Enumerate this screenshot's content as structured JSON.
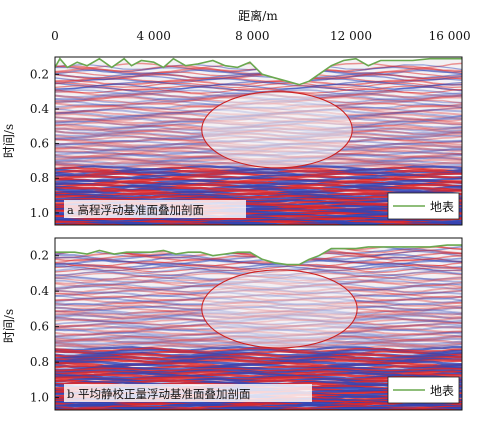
{
  "chart_data": [
    {
      "type": "seismic-section",
      "panel_label": "a 高程浮动基准面叠加剖面",
      "xlabel": "距离/m",
      "ylabel": "时间/s",
      "xlim": [
        0,
        16500
      ],
      "ylim": [
        0.1,
        1.07
      ],
      "x_ticks": [
        0,
        4000,
        8000,
        12000,
        16000
      ],
      "x_tick_labels": [
        "0",
        "4 000",
        "8 000",
        "12 000",
        "16 000"
      ],
      "y_ticks": [
        0.2,
        0.4,
        0.6,
        0.8,
        1.0
      ],
      "y_tick_labels": [
        "0.2",
        "0.4",
        "0.6",
        "0.8",
        "1.0"
      ],
      "legend": {
        "label": "地表",
        "color": "#6aa84f",
        "position": "bottom-right"
      },
      "surface_line": {
        "name": "地表",
        "x": [
          0,
          200,
          500,
          900,
          1300,
          1800,
          2300,
          2800,
          3100,
          3500,
          4000,
          4400,
          4800,
          5300,
          5800,
          6400,
          6900,
          7400,
          7900,
          8400,
          8900,
          9400,
          9900,
          10300,
          10700,
          11200,
          11700,
          12200,
          12700,
          13200,
          13800,
          14500,
          15200,
          15900,
          16500
        ],
        "y": [
          0.16,
          0.11,
          0.16,
          0.13,
          0.15,
          0.11,
          0.16,
          0.11,
          0.15,
          0.12,
          0.13,
          0.16,
          0.11,
          0.15,
          0.14,
          0.12,
          0.15,
          0.16,
          0.13,
          0.2,
          0.22,
          0.24,
          0.26,
          0.24,
          0.2,
          0.15,
          0.12,
          0.11,
          0.15,
          0.12,
          0.12,
          0.12,
          0.11,
          0.11,
          0.11
        ]
      },
      "annotation_ellipse": {
        "cx": 9000,
        "cy": 0.52,
        "rx": 3050,
        "ry": 0.22,
        "color": "#cc2222"
      }
    },
    {
      "type": "seismic-section",
      "panel_label": "b 平均静校正量浮动基准面叠加剖面",
      "xlabel": "",
      "ylabel": "时间/s",
      "xlim": [
        0,
        16500
      ],
      "ylim": [
        0.1,
        1.07
      ],
      "y_ticks": [
        0.2,
        0.4,
        0.6,
        0.8,
        1.0
      ],
      "y_tick_labels": [
        "0.2",
        "0.4",
        "0.6",
        "0.8",
        "1.0"
      ],
      "legend": {
        "label": "地表",
        "color": "#6aa84f",
        "position": "bottom-right"
      },
      "surface_line": {
        "name": "地表",
        "x": [
          0,
          400,
          800,
          1300,
          1800,
          2400,
          2900,
          3400,
          3900,
          4400,
          4900,
          5400,
          5900,
          6400,
          6900,
          7400,
          7900,
          8400,
          8900,
          9400,
          9900,
          10300,
          10700,
          11200,
          11700,
          12200,
          12700,
          13200,
          13800,
          14500,
          15200,
          15900,
          16500
        ],
        "y": [
          0.18,
          0.18,
          0.18,
          0.19,
          0.17,
          0.19,
          0.18,
          0.18,
          0.18,
          0.17,
          0.19,
          0.18,
          0.18,
          0.2,
          0.19,
          0.18,
          0.18,
          0.22,
          0.24,
          0.25,
          0.25,
          0.22,
          0.2,
          0.16,
          0.16,
          0.16,
          0.15,
          0.15,
          0.15,
          0.15,
          0.15,
          0.14,
          0.14
        ]
      },
      "annotation_ellipse": {
        "cx": 9100,
        "cy": 0.5,
        "rx": 3150,
        "ry": 0.22,
        "color": "#cc2222"
      }
    }
  ]
}
